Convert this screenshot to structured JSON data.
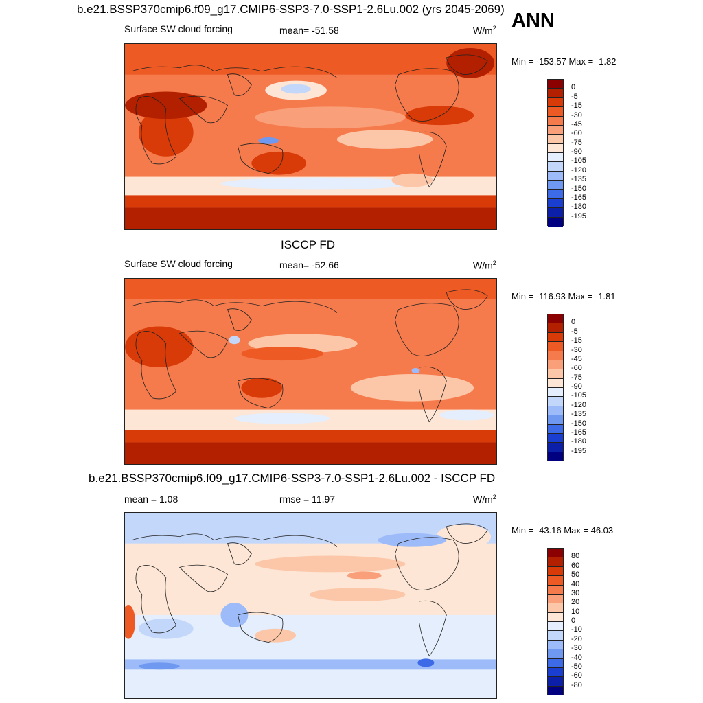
{
  "header": {
    "top_title": "b.e21.BSSP370cmip6.f09_g17.CMIP6-SSP3-7.0-SSP1-2.6Lu.002 (yrs 2045-2069)",
    "season": "ANN"
  },
  "panel1": {
    "variable": "Surface SW cloud forcing",
    "stat": "mean= -51.58",
    "units": "W/m",
    "units_exp": "2",
    "minmax": "Min = -153.57 Max =  -1.82"
  },
  "panel2": {
    "title": "ISCCP FD",
    "variable": "Surface SW cloud forcing",
    "stat": "mean= -52.66",
    "units": "W/m",
    "units_exp": "2",
    "minmax": "Min = -116.93 Max =  -1.81"
  },
  "panel3": {
    "title": "b.e21.BSSP370cmip6.f09_g17.CMIP6-SSP3-7.0-SSP1-2.6Lu.002 - ISCCP FD",
    "stat_mean": "mean =   1.08",
    "stat_rmse": "rmse =  11.97",
    "units": "W/m",
    "units_exp": "2",
    "minmax": "Min = -43.16 Max =  46.03"
  },
  "colorbar_abs": {
    "labels": [
      "0",
      "-5",
      "-15",
      "-30",
      "-45",
      "-60",
      "-75",
      "-90",
      "-105",
      "-120",
      "-135",
      "-150",
      "-165",
      "-180",
      "-195"
    ],
    "colors": [
      "#8b0000",
      "#b22000",
      "#d83a08",
      "#ee5a24",
      "#f67b4c",
      "#f9a07a",
      "#fcc7a8",
      "#fde6d5",
      "#e4eefc",
      "#c3d7fb",
      "#9dbbf8",
      "#6f98f0",
      "#3d6ae6",
      "#1a3fd0",
      "#0b1fa8",
      "#000080"
    ]
  },
  "colorbar_diff": {
    "labels": [
      "80",
      "60",
      "50",
      "40",
      "30",
      "20",
      "10",
      "0",
      "-10",
      "-20",
      "-30",
      "-40",
      "-50",
      "-60",
      "-80"
    ],
    "colors": [
      "#8b0000",
      "#b22000",
      "#d83a08",
      "#ee5a24",
      "#f67b4c",
      "#f9a07a",
      "#fcc7a8",
      "#fde6d5",
      "#e4eefc",
      "#c3d7fb",
      "#9dbbf8",
      "#6f98f0",
      "#3d6ae6",
      "#1a3fd0",
      "#0b1fa8",
      "#000080"
    ]
  }
}
